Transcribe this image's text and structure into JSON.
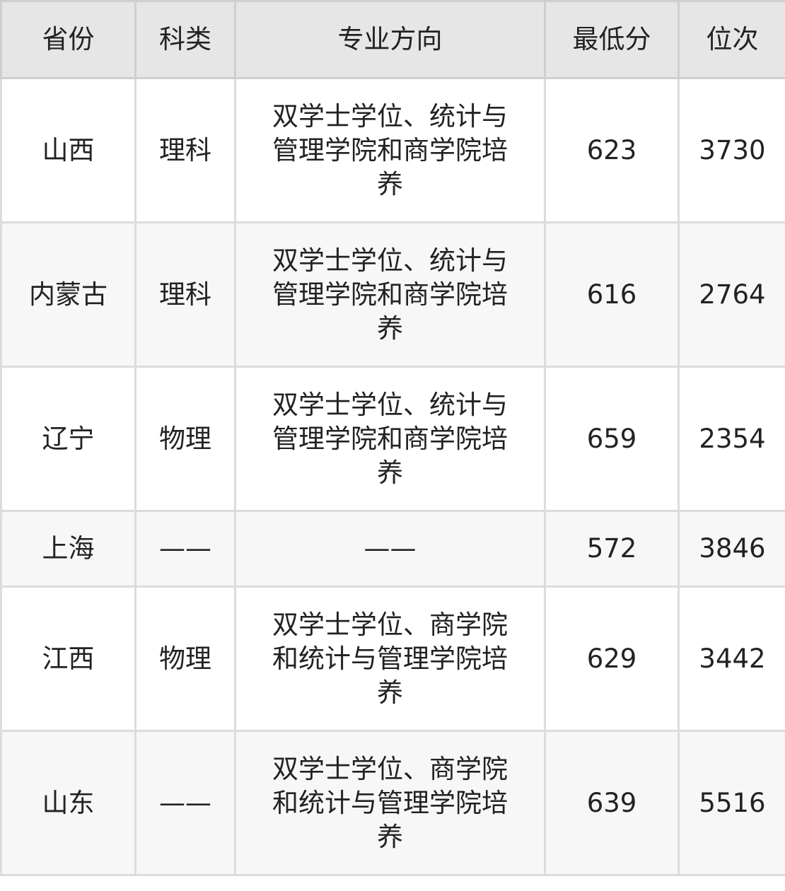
{
  "table": {
    "headers": [
      "省份",
      "科类",
      "专业方向",
      "最低分",
      "位次"
    ],
    "rows": [
      {
        "province": "山西",
        "category": "理科",
        "major": "双学士学位、统计与管理学院和商学院培养",
        "min_score": "623",
        "rank": "3730"
      },
      {
        "province": "内蒙古",
        "category": "理科",
        "major": "双学士学位、统计与管理学院和商学院培养",
        "min_score": "616",
        "rank": "2764"
      },
      {
        "province": "辽宁",
        "category": "物理",
        "major": "双学士学位、统计与管理学院和商学院培养",
        "min_score": "659",
        "rank": "2354"
      },
      {
        "province": "上海",
        "category": "——",
        "major": "——",
        "min_score": "572",
        "rank": "3846"
      },
      {
        "province": "江西",
        "category": "物理",
        "major": "双学士学位、商学院和统计与管理学院培养",
        "min_score": "629",
        "rank": "3442"
      },
      {
        "province": "山东",
        "category": "——",
        "major": "双学士学位、商学院和统计与管理学院培养",
        "min_score": "639",
        "rank": "5516"
      }
    ]
  }
}
